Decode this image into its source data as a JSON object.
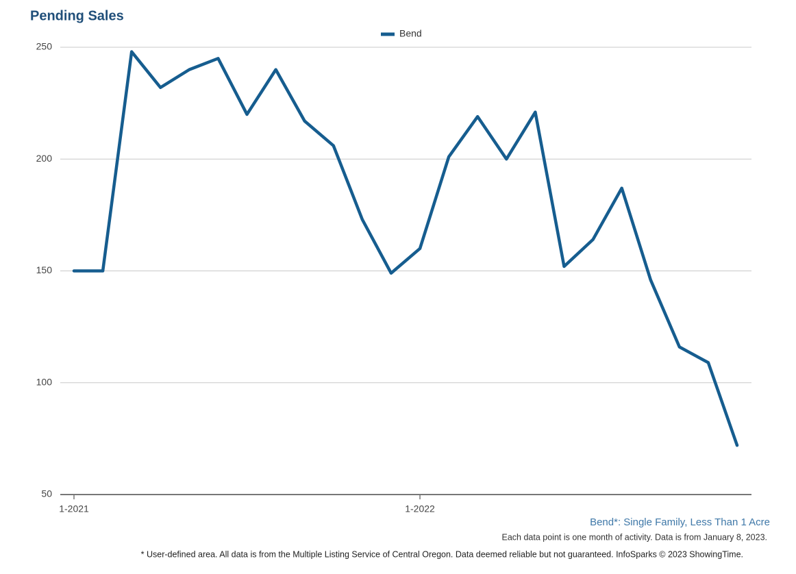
{
  "chart_data": {
    "type": "line",
    "title": "Pending Sales",
    "categories": [
      "1-2021",
      null,
      null,
      null,
      null,
      null,
      null,
      null,
      null,
      null,
      null,
      null,
      "1-2022",
      null,
      null,
      null,
      null,
      null,
      null,
      null,
      null,
      null,
      null,
      null
    ],
    "series": [
      {
        "name": "Bend",
        "color": "#165d8f",
        "values": [
          150,
          150,
          248,
          232,
          240,
          245,
          220,
          240,
          217,
          206,
          173,
          149,
          160,
          201,
          219,
          200,
          221,
          152,
          164,
          187,
          146,
          116,
          109,
          72
        ]
      }
    ],
    "ylim": [
      50,
      250
    ],
    "yticks": [
      50,
      100,
      150,
      200,
      250
    ],
    "grid": true,
    "legend": "top",
    "subtitle": "Bend*: Single Family, Less Than 1 Acre",
    "notes": [
      "Each data point is one month of activity. Data is from January 8, 2023.",
      "* User-defined area. All data is from the Multiple Listing Service of Central Oregon. Data deemed reliable but not guaranteed. InfoSparks © 2023 ShowingTime."
    ]
  }
}
